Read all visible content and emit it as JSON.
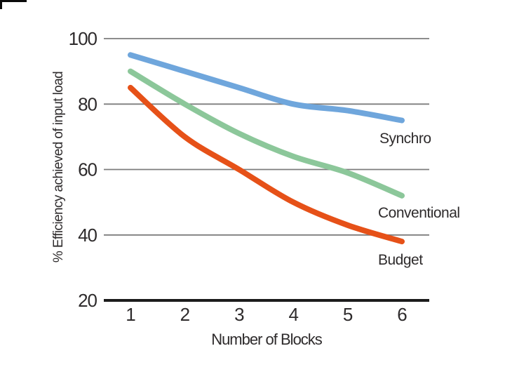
{
  "chart_data": {
    "type": "line",
    "title": "",
    "xlabel": "Number of Blocks",
    "ylabel": "% Efficiency achieved of input load",
    "x": [
      "1",
      "2",
      "3",
      "4",
      "5",
      "6"
    ],
    "yticks": [
      100,
      80,
      60,
      40,
      20
    ],
    "ylim": [
      20,
      100
    ],
    "grid": "horizontal gridlines at 40/60/80/100, heavy baseline at 20",
    "legend_position": "inline labels right of line ends",
    "series": [
      {
        "name": "Synchro",
        "color": "#6fa6dc",
        "values": [
          95,
          90,
          85,
          80,
          78,
          75
        ]
      },
      {
        "name": "Conventional",
        "color": "#8cc79a",
        "values": [
          90,
          80,
          71,
          64,
          59,
          52
        ]
      },
      {
        "name": "Budget",
        "color": "#e65118",
        "values": [
          85,
          70,
          60,
          50,
          43,
          38
        ]
      }
    ]
  },
  "colors": {
    "background": "#ffffff",
    "gridline": "#7d7d7d",
    "axis": "#1c1c1c",
    "text": "#2e2b2c"
  }
}
